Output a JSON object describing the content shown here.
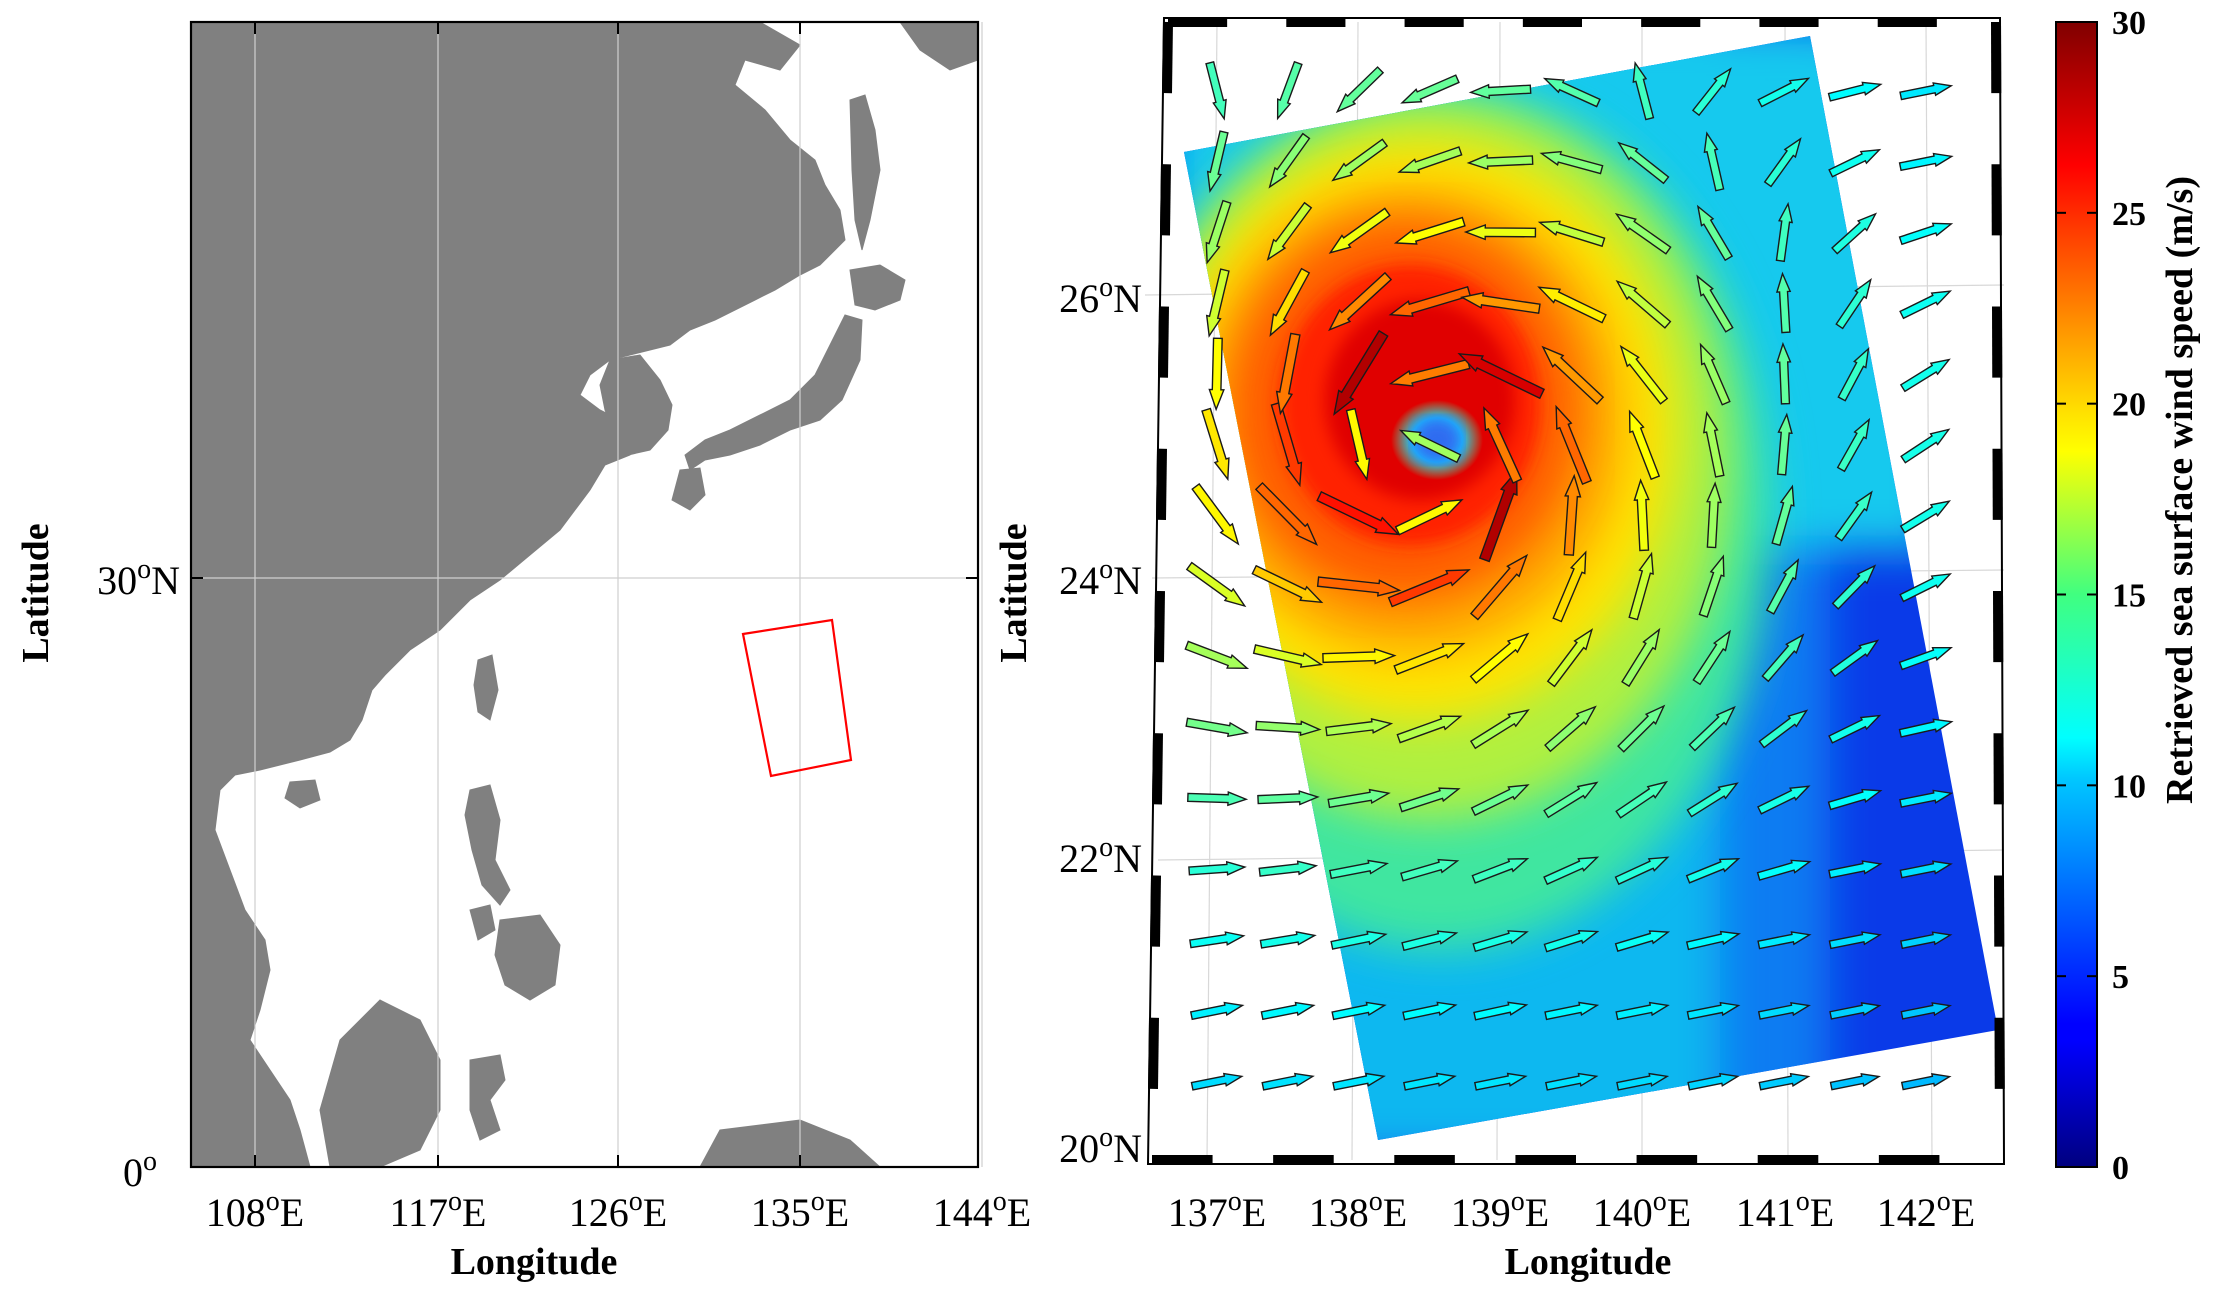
{
  "left_map": {
    "x_ticks": [
      "108",
      "117",
      "126",
      "135",
      "144"
    ],
    "x_suffix": "E",
    "y_ticks": [
      "0",
      "30"
    ],
    "y_suffix": "N",
    "degree_symbol": "o",
    "xlabel": "Longitude",
    "ylabel": "Latitude",
    "land_color": "#808080",
    "sea_color": "#ffffff",
    "study_box_color": "#ff0000"
  },
  "right_map": {
    "x_ticks": [
      "137",
      "138",
      "139",
      "140",
      "141",
      "142"
    ],
    "x_suffix": "E",
    "y_ticks": [
      "20",
      "22",
      "24",
      "26"
    ],
    "y_suffix": "N",
    "degree_symbol": "o",
    "xlabel": "Longitude",
    "ylabel": "Latitude",
    "eye_lon": 138.45,
    "eye_lat": 24.95,
    "rmax_deg": 0.75
  },
  "colorbar": {
    "label": "Retrieved sea surface wind speed (m/s)",
    "ticks": [
      "30",
      "25",
      "20",
      "15",
      "10",
      "5",
      "0"
    ],
    "min": 0,
    "max": 30,
    "colormap": "jet"
  }
}
